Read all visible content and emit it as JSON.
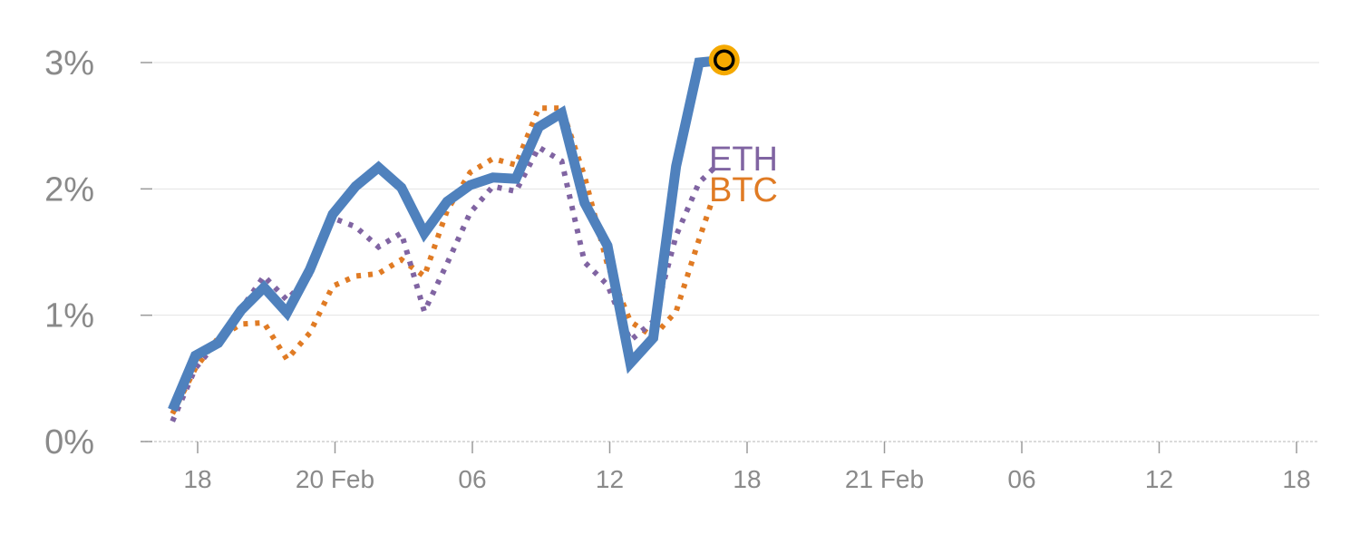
{
  "chart_data": {
    "type": "line",
    "x_axis": {
      "tick_labels": [
        "18",
        "20 Feb",
        "06",
        "12",
        "18",
        "21 Feb",
        "06",
        "12",
        "18"
      ],
      "tick_hours": [
        18,
        24,
        30,
        36,
        42,
        48,
        54,
        60,
        66
      ],
      "range_hours": [
        15.2,
        67
      ]
    },
    "y_axis": {
      "tick_labels": [
        "0%",
        "1%",
        "2%",
        "3%"
      ],
      "tick_values": [
        0,
        1,
        2,
        3
      ],
      "ylim": [
        0,
        3
      ],
      "unit": "%"
    },
    "grid": "horizontal",
    "series": [
      {
        "name": "",
        "style": "solid",
        "color": "#4f81bd",
        "points": [
          [
            16.9,
            0.25
          ],
          [
            17.9,
            0.68
          ],
          [
            18.9,
            0.78
          ],
          [
            19.9,
            1.04
          ],
          [
            20.9,
            1.22
          ],
          [
            21.9,
            1.02
          ],
          [
            22.9,
            1.36
          ],
          [
            23.9,
            1.8
          ],
          [
            24.9,
            2.02
          ],
          [
            25.9,
            2.17
          ],
          [
            26.9,
            2.01
          ],
          [
            27.9,
            1.65
          ],
          [
            28.9,
            1.9
          ],
          [
            29.9,
            2.03
          ],
          [
            30.9,
            2.09
          ],
          [
            31.9,
            2.08
          ],
          [
            32.9,
            2.49
          ],
          [
            33.9,
            2.6
          ],
          [
            34.9,
            1.89
          ],
          [
            35.9,
            1.55
          ],
          [
            36.9,
            0.62
          ],
          [
            37.9,
            0.82
          ],
          [
            38.9,
            2.18
          ],
          [
            39.9,
            3.0
          ],
          [
            41.0,
            3.02
          ]
        ]
      },
      {
        "name": "BTC",
        "style": "dotted",
        "color": "#e07b24",
        "points": [
          [
            16.9,
            0.22
          ],
          [
            17.9,
            0.58
          ],
          [
            18.9,
            0.82
          ],
          [
            19.9,
            0.93
          ],
          [
            20.9,
            0.94
          ],
          [
            21.9,
            0.65
          ],
          [
            22.9,
            0.86
          ],
          [
            23.9,
            1.23
          ],
          [
            24.9,
            1.31
          ],
          [
            25.9,
            1.33
          ],
          [
            26.9,
            1.44
          ],
          [
            27.9,
            1.31
          ],
          [
            28.9,
            1.83
          ],
          [
            29.9,
            2.13
          ],
          [
            30.9,
            2.24
          ],
          [
            31.9,
            2.19
          ],
          [
            32.9,
            2.64
          ],
          [
            33.9,
            2.64
          ],
          [
            34.9,
            2.1
          ],
          [
            35.9,
            1.4
          ],
          [
            36.9,
            0.95
          ],
          [
            37.9,
            0.83
          ],
          [
            38.9,
            1.03
          ],
          [
            39.9,
            1.6
          ],
          [
            40.5,
            1.92
          ]
        ]
      },
      {
        "name": "ETH",
        "style": "dotted",
        "color": "#8064a2",
        "points": [
          [
            16.9,
            0.16
          ],
          [
            17.9,
            0.58
          ],
          [
            18.9,
            0.8
          ],
          [
            19.9,
            1.05
          ],
          [
            20.9,
            1.31
          ],
          [
            21.9,
            1.12
          ],
          [
            22.9,
            1.32
          ],
          [
            23.9,
            1.77
          ],
          [
            24.9,
            1.7
          ],
          [
            25.9,
            1.54
          ],
          [
            26.9,
            1.65
          ],
          [
            27.9,
            1.03
          ],
          [
            28.9,
            1.41
          ],
          [
            29.9,
            1.81
          ],
          [
            30.9,
            2.02
          ],
          [
            31.9,
            1.98
          ],
          [
            32.9,
            2.33
          ],
          [
            33.9,
            2.22
          ],
          [
            34.9,
            1.42
          ],
          [
            35.9,
            1.24
          ],
          [
            36.9,
            0.8
          ],
          [
            37.9,
            0.95
          ],
          [
            38.9,
            1.63
          ],
          [
            39.9,
            2.05
          ],
          [
            40.7,
            2.19
          ]
        ]
      }
    ],
    "end_marker": {
      "x": 41.0,
      "y": 3.02,
      "fill": "#f5a900",
      "stroke": "#000000"
    },
    "series_labels": [
      {
        "text": "ETH",
        "color": "#8064a2"
      },
      {
        "text": "BTC",
        "color": "#e07b24"
      }
    ]
  }
}
